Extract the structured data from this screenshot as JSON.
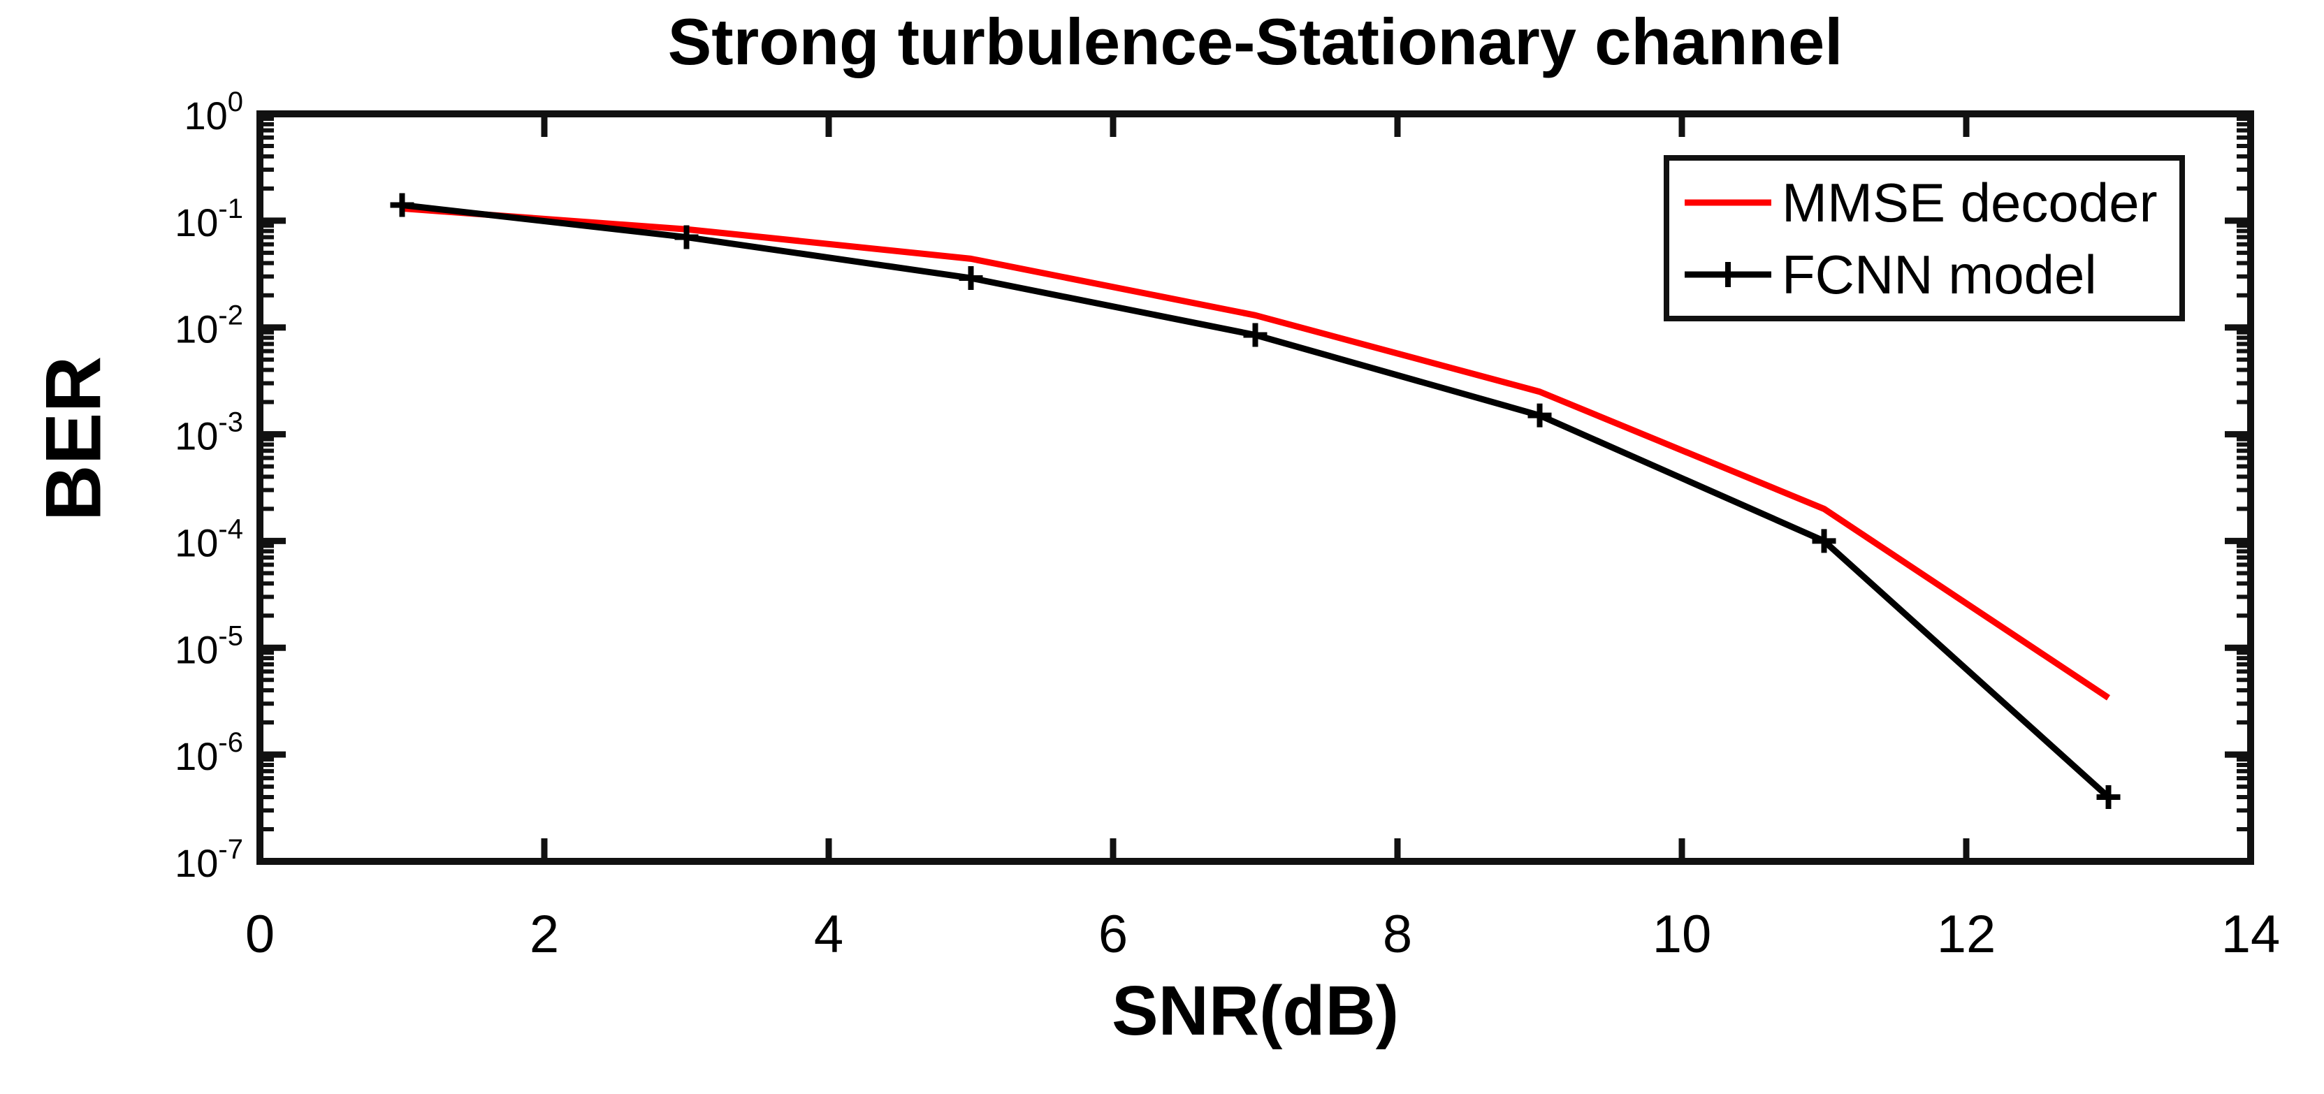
{
  "chart_data": {
    "type": "line",
    "title": "Strong turbulence-Stationary channel",
    "xlabel": "SNR(dB)",
    "ylabel": "BER",
    "y_scale": "log",
    "xlim": [
      0,
      14
    ],
    "ylim_exponents": [
      -7,
      0
    ],
    "x_ticks": [
      0,
      2,
      4,
      6,
      8,
      10,
      12,
      14
    ],
    "y_tick_exponents": [
      0,
      -1,
      -2,
      -3,
      -4,
      -5,
      -6,
      -7
    ],
    "grid": false,
    "legend_position": "top-right",
    "x": [
      1,
      3,
      5,
      7,
      9,
      11,
      13
    ],
    "series": [
      {
        "name": "MMSE decoder",
        "color": "#ff0000",
        "marker": "none",
        "values": [
          0.13,
          0.083,
          0.044,
          0.013,
          0.0025,
          0.0002,
          3.4e-06
        ]
      },
      {
        "name": "FCNN model",
        "color": "#000000",
        "marker": "plus",
        "values": [
          0.14,
          0.07,
          0.029,
          0.0085,
          0.0015,
          0.0001,
          4e-07
        ]
      }
    ]
  },
  "colors": {
    "axis": "#111111",
    "background": "#ffffff",
    "mmse_line": "#ff0000",
    "fcnn_line": "#000000"
  }
}
